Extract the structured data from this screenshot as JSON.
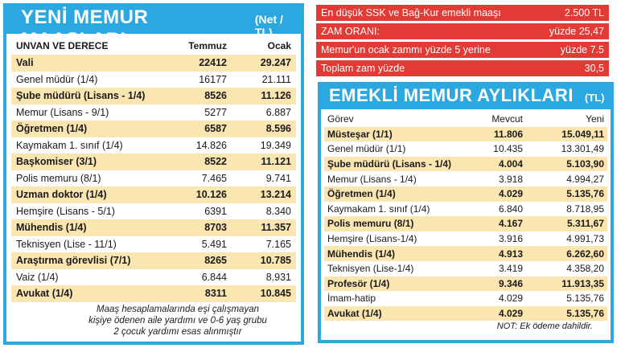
{
  "left": {
    "title": "YENİ MEMUR MAAŞLARI",
    "unit": "(Net / TL)",
    "headers": [
      "UNVAN VE DERECE",
      "Temmuz",
      "Ocak"
    ],
    "rows": [
      {
        "name": "Vali",
        "jul": "22412",
        "jan": "29.247",
        "hl": true
      },
      {
        "name": "Genel müdür (1/4)",
        "jul": "16177",
        "jan": "21.111",
        "hl": false
      },
      {
        "name": "Şube müdürü (Lisans - 1/4)",
        "jul": "8526",
        "jan": "11.126",
        "hl": true
      },
      {
        "name": "Memur (Lisans - 9/1)",
        "jul": "5277",
        "jan": "6.887",
        "hl": false
      },
      {
        "name": "Öğretmen (1/4)",
        "jul": "6587",
        "jan": "8.596",
        "hl": true
      },
      {
        "name": "Kaymakam 1. sınıf (1/4)",
        "jul": "14.826",
        "jan": "19.349",
        "hl": false
      },
      {
        "name": "Başkomiser (3/1)",
        "jul": "8522",
        "jan": "11.121",
        "hl": true
      },
      {
        "name": "Polis memuru (8/1)",
        "jul": "7.465",
        "jan": "9.741",
        "hl": false
      },
      {
        "name": "Uzman doktor (1/4)",
        "jul": "10.126",
        "jan": "13.214",
        "hl": true
      },
      {
        "name": "Hemşire (Lisans - 5/1)",
        "jul": "6391",
        "jan": "8.340",
        "hl": false
      },
      {
        "name": "Mühendis (1/4)",
        "jul": "8703",
        "jan": "11.357",
        "hl": true
      },
      {
        "name": "Teknisyen (Lise - 11/1)",
        "jul": "5.491",
        "jan": "7.165",
        "hl": false
      },
      {
        "name": "Araştırma görevlisi (7/1)",
        "jul": "8265",
        "jan": "10.785",
        "hl": true
      },
      {
        "name": "Vaiz (1/4)",
        "jul": "6.844",
        "jan": "8.931",
        "hl": false
      },
      {
        "name": "Avukat (1/4)",
        "jul": "8311",
        "jan": "10.845",
        "hl": true
      }
    ],
    "note": [
      "Maaş hesaplamalarında eşi çalışmayan",
      "kişiye ödenen aile yardımı ve 0-6 yaş grubu",
      "2 çocuk yardımı esas alınmıştır"
    ]
  },
  "info": [
    {
      "label": "En düşük SSK ve Bağ-Kur emekli maaşı",
      "value": "2.500 TL"
    },
    {
      "label": "ZAM ORANI:",
      "value": "yüzde 25,47"
    },
    {
      "label": "Memur'un ocak zammı yüzde 5 yerine",
      "value": "yüzde 7.5"
    },
    {
      "label": "Toplam zam yüzde",
      "value": "30,5"
    }
  ],
  "right": {
    "title": "EMEKLİ MEMUR AYLIKLARI",
    "unit": "(TL)",
    "headers": [
      "Görev",
      "Mevcut",
      "Yeni"
    ],
    "rows": [
      {
        "name": "Müsteşar (1/1)",
        "cur": "11.806",
        "new": "15.049,11",
        "hl": true
      },
      {
        "name": "Genel müdür (1/1)",
        "cur": "10.435",
        "new": "13.301,49",
        "hl": false
      },
      {
        "name": "Şube müdürü (Lisans - 1/4)",
        "cur": "4.004",
        "new": "5.103,90",
        "hl": true
      },
      {
        "name": "Memur (Lisans - 1/4)",
        "cur": "3.918",
        "new": "4.994,27",
        "hl": false
      },
      {
        "name": "Öğretmen (1/4)",
        "cur": "4.029",
        "new": "5.135,76",
        "hl": true
      },
      {
        "name": "Kaymakam 1. sınıf (1/4)",
        "cur": "6.840",
        "new": "8.718,95",
        "hl": false
      },
      {
        "name": "Polis memuru (8/1)",
        "cur": "4.167",
        "new": "5.311,67",
        "hl": true
      },
      {
        "name": "Hemşire (Lisans-1/4)",
        "cur": "3.916",
        "new": "4.991,73",
        "hl": false
      },
      {
        "name": "Mühendis (1/4)",
        "cur": "4.913",
        "new": "6.262,60",
        "hl": true
      },
      {
        "name": "Teknisyen (Lise-1/4)",
        "cur": "3.419",
        "new": "4.358,20",
        "hl": false
      },
      {
        "name": "Profesör (1/4)",
        "cur": "9.346",
        "new": "11.913,35",
        "hl": true
      },
      {
        "name": "İmam-hatip",
        "cur": "4.029",
        "new": "5.135,76",
        "hl": false
      },
      {
        "name": "Avukat (1/4)",
        "cur": "4.029",
        "new": "5.135,76",
        "hl": true
      }
    ],
    "note": "NOT: Ek ödeme dahildir."
  }
}
